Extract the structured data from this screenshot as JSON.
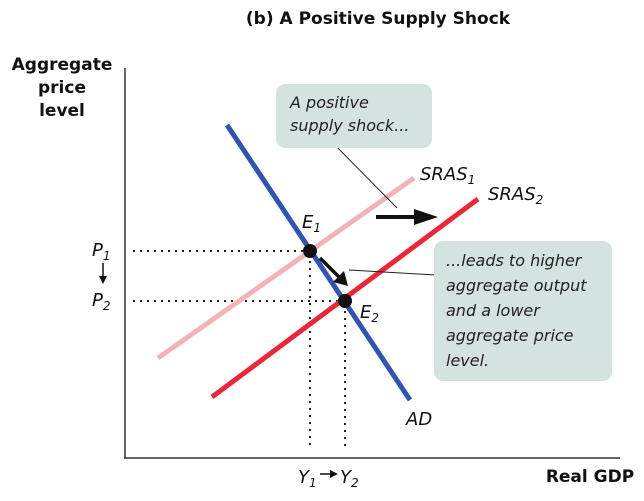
{
  "title": "(b) A Positive Supply Shock",
  "axes": {
    "y_label_lines": [
      "Aggregate",
      "price",
      "level"
    ],
    "x_label": "Real GDP"
  },
  "curves": {
    "sras1": {
      "name": "SRAS",
      "sub": "1",
      "color": "#f2b3b8"
    },
    "sras2": {
      "name": "SRAS",
      "sub": "2",
      "color": "#e8283a"
    },
    "ad": {
      "name": "AD",
      "color": "#2f55b0"
    }
  },
  "points": {
    "e1": {
      "name": "E",
      "sub": "1"
    },
    "e2": {
      "name": "E",
      "sub": "2"
    }
  },
  "ticks": {
    "p1": {
      "name": "P",
      "sub": "1"
    },
    "p2": {
      "name": "P",
      "sub": "2"
    },
    "y1": {
      "name": "Y",
      "sub": "1"
    },
    "y2": {
      "name": "Y",
      "sub": "2"
    }
  },
  "callouts": {
    "top_lines": [
      "A positive",
      "supply shock..."
    ],
    "right_lines": [
      "...leads to higher",
      "aggregate output",
      "and a lower",
      "aggregate price",
      "level."
    ],
    "fill": "#d4e3df"
  }
}
